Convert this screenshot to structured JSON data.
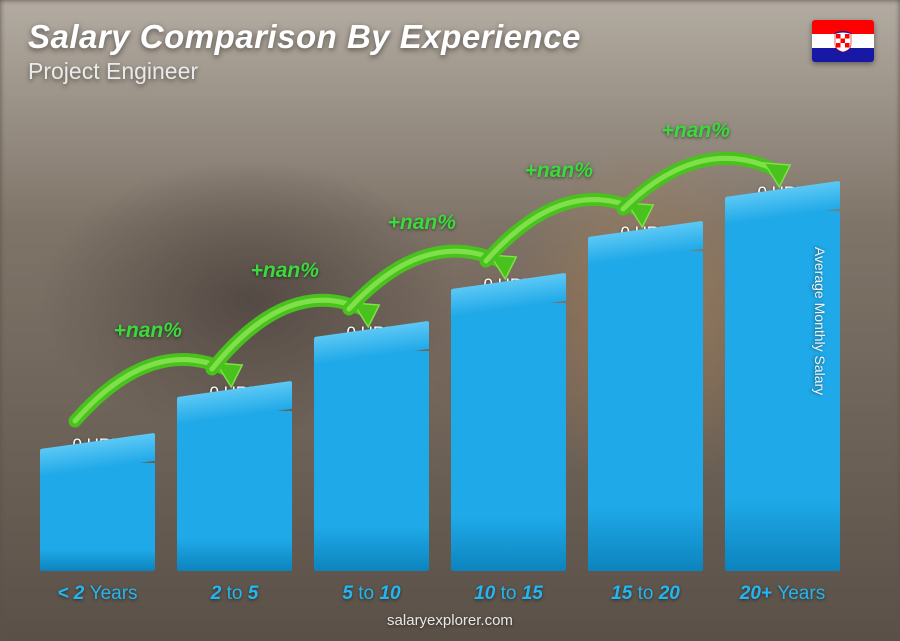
{
  "header": {
    "title": "Salary Comparison By Experience",
    "subtitle": "Project Engineer"
  },
  "flag": {
    "stripe_colors": [
      "#ff0000",
      "#ffffff",
      "#1718a3"
    ],
    "emblem_primary": "#ff0000",
    "emblem_secondary": "#ffffff"
  },
  "axis": {
    "y_label": "Average Monthly Salary"
  },
  "chart": {
    "type": "bar",
    "bar_color_front": "#1fa9e8",
    "bar_color_top": "#5cc8f5",
    "bar_color_side": "#0c84bd",
    "x_label_color": "#22b7f2",
    "value_label_color": "#ffffff",
    "pct_color": "#3bd93b",
    "arrow_fill": "#49c21e",
    "arrow_stroke": "#7fe04a",
    "background_color": "transparent",
    "bars": [
      {
        "x_label_pre": "< 2 ",
        "x_label_dim": "Years",
        "x_label_post": "",
        "value_label": "0 HRK",
        "height_pct": 27
      },
      {
        "x_label_pre": "2 ",
        "x_label_dim": "to",
        "x_label_post": " 5",
        "value_label": "0 HRK",
        "height_pct": 40
      },
      {
        "x_label_pre": "5 ",
        "x_label_dim": "to",
        "x_label_post": " 10",
        "value_label": "0 HRK",
        "height_pct": 55
      },
      {
        "x_label_pre": "10 ",
        "x_label_dim": "to",
        "x_label_post": " 15",
        "value_label": "0 HRK",
        "height_pct": 67
      },
      {
        "x_label_pre": "15 ",
        "x_label_dim": "to",
        "x_label_post": " 20",
        "value_label": "0 HRK",
        "height_pct": 80
      },
      {
        "x_label_pre": "20+ ",
        "x_label_dim": "Years",
        "x_label_post": "",
        "value_label": "0 HRK",
        "height_pct": 90
      }
    ],
    "pct_labels": [
      "+nan%",
      "+nan%",
      "+nan%",
      "+nan%",
      "+nan%"
    ]
  },
  "attribution": "salaryexplorer.com"
}
